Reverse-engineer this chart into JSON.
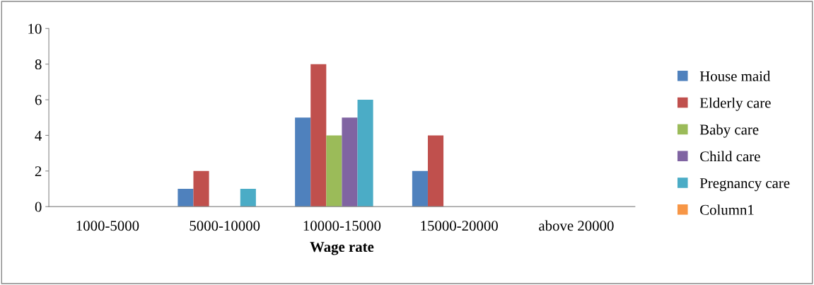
{
  "chart_data": {
    "type": "bar",
    "xlabel": "Wage rate",
    "categories": [
      "1000-5000",
      "5000-10000",
      "10000-15000",
      "15000-20000",
      "above 20000"
    ],
    "series": [
      {
        "name": "House maid",
        "color": "#4f81bd",
        "values": [
          0,
          1,
          5,
          2,
          0
        ]
      },
      {
        "name": "Elderly care",
        "color": "#c0504d",
        "values": [
          0,
          2,
          8,
          4,
          0
        ]
      },
      {
        "name": "Baby care",
        "color": "#9bbb59",
        "values": [
          0,
          0,
          4,
          0,
          0
        ]
      },
      {
        "name": "Child care",
        "color": "#8064a2",
        "values": [
          0,
          0,
          5,
          0,
          0
        ]
      },
      {
        "name": "Pregnancy care",
        "color": "#4bacc6",
        "values": [
          0,
          1,
          6,
          0,
          0
        ]
      },
      {
        "name": "Column1",
        "color": "#f79646",
        "values": [
          0,
          0,
          0,
          0,
          0
        ]
      }
    ],
    "ylim": [
      0,
      10
    ],
    "yticks": [
      0,
      2,
      4,
      6,
      8,
      10
    ],
    "grid": false,
    "legend": "right"
  }
}
